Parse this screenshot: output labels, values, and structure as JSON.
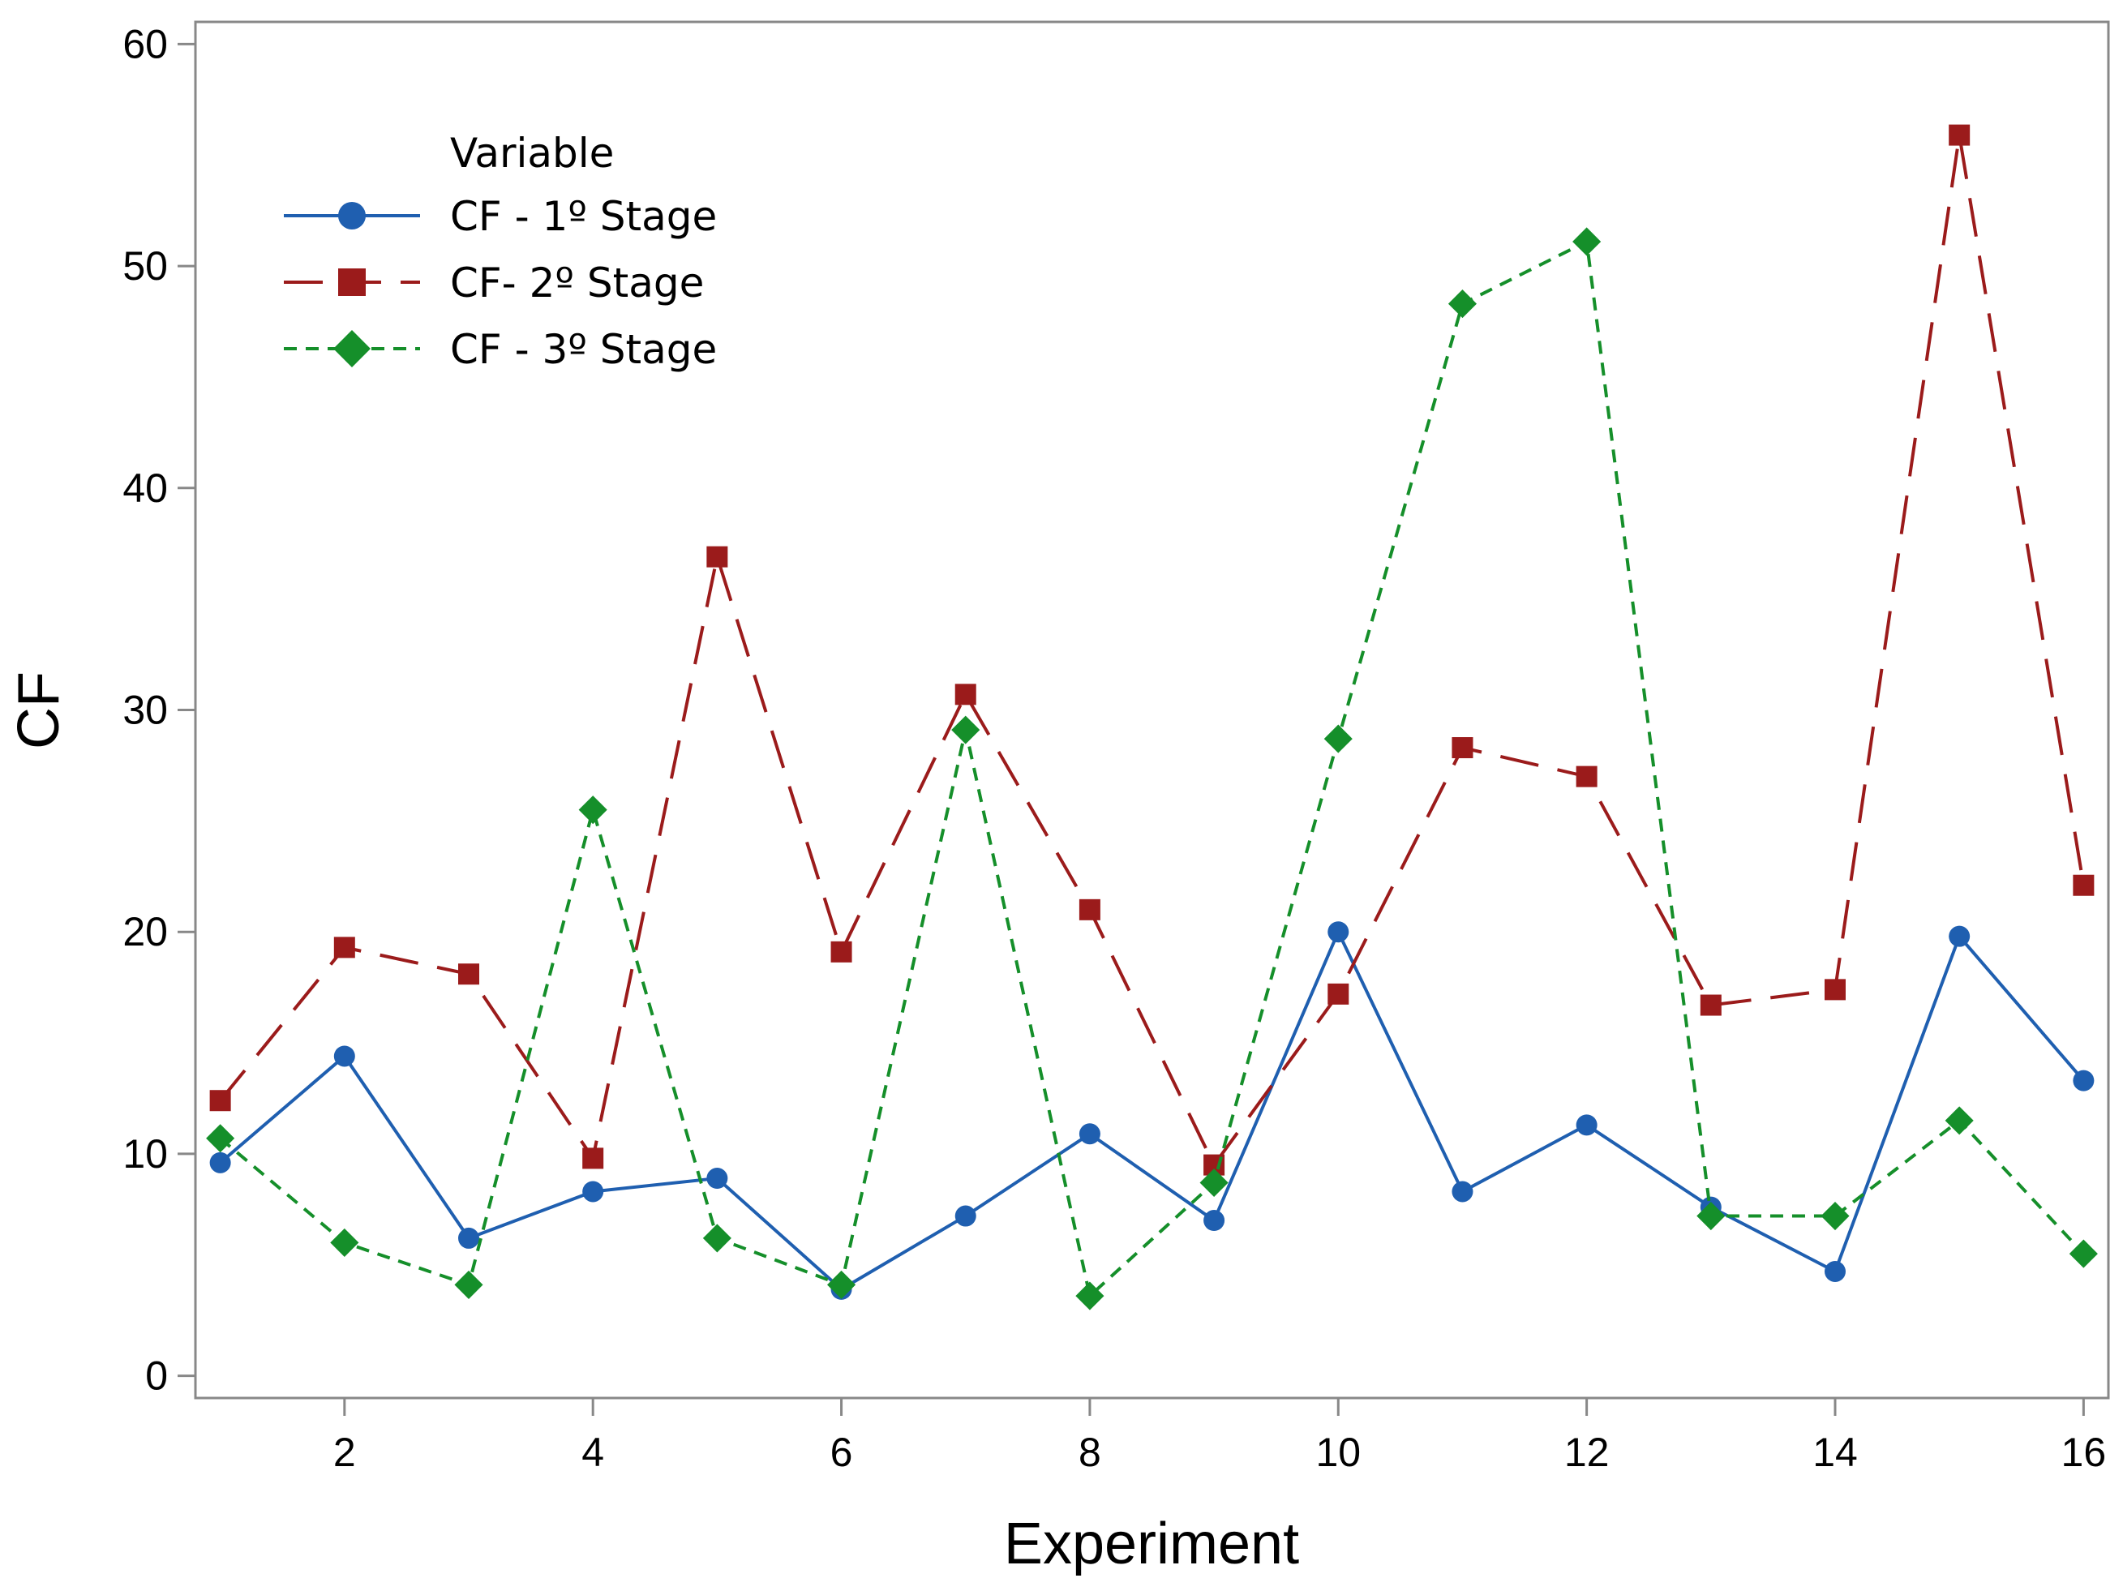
{
  "chart_data": {
    "type": "line",
    "title": "",
    "xlabel": "Experiment",
    "ylabel": "CF",
    "xlim": [
      0.8,
      16.2
    ],
    "ylim": [
      -1,
      61
    ],
    "xticks": [
      2,
      4,
      6,
      8,
      10,
      12,
      14,
      16
    ],
    "yticks": [
      0,
      10,
      20,
      30,
      40,
      50,
      60
    ],
    "x": [
      1,
      2,
      3,
      4,
      5,
      6,
      7,
      8,
      9,
      10,
      11,
      12,
      13,
      14,
      15,
      16
    ],
    "grid": false,
    "legend": {
      "title": "Variable",
      "position": "top-left"
    },
    "series": [
      {
        "name": "CF - 1º Stage",
        "values": [
          9.6,
          14.4,
          6.2,
          8.3,
          8.9,
          3.9,
          7.2,
          10.9,
          7.0,
          20.0,
          8.3,
          11.3,
          7.6,
          4.7,
          19.8,
          13.3
        ],
        "color": "#1f5fb0",
        "marker": "circle",
        "line_style": "solid"
      },
      {
        "name": "CF- 2º Stage",
        "values": [
          12.4,
          19.3,
          18.1,
          9.8,
          36.9,
          19.1,
          30.7,
          21.0,
          9.5,
          17.2,
          28.3,
          27.0,
          16.7,
          17.4,
          55.9,
          22.1
        ],
        "color": "#9b1b1b",
        "marker": "square",
        "line_style": "long-dash"
      },
      {
        "name": "CF - 3º Stage",
        "values": [
          10.7,
          6.0,
          4.1,
          25.5,
          6.2,
          4.1,
          29.1,
          3.6,
          8.7,
          28.7,
          48.3,
          51.1,
          7.2,
          7.2,
          11.5,
          5.5
        ],
        "color": "#158f2a",
        "marker": "diamond",
        "line_style": "short-dash"
      }
    ]
  }
}
